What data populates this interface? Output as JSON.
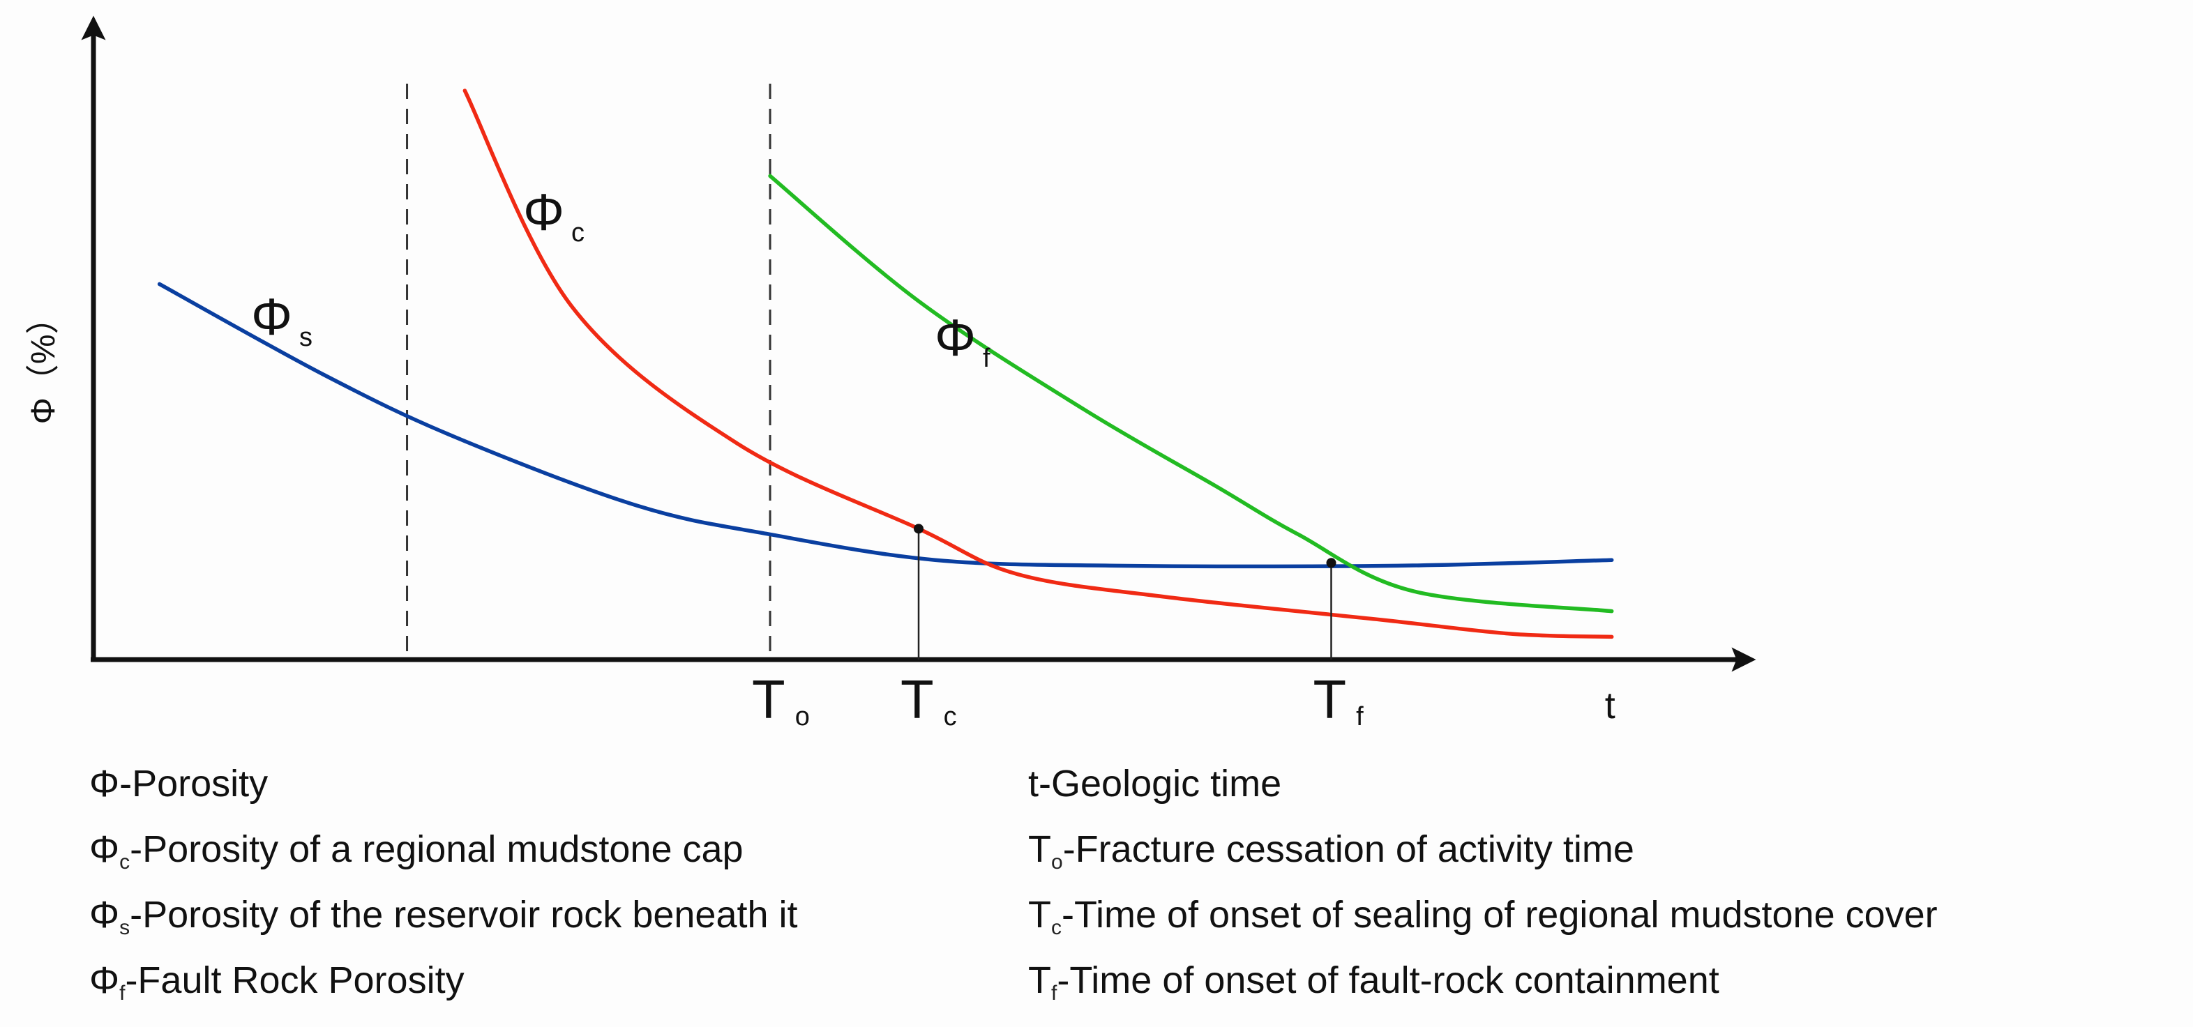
{
  "chart_data": {
    "type": "line",
    "title": "",
    "ylabel": "Φ（%）",
    "xlabel": "t",
    "x_range": [
      0,
      100
    ],
    "y_range": [
      0,
      100
    ],
    "series": [
      {
        "name": "Φs",
        "symbol": "Φ",
        "sub": "s",
        "color": "#0a3fa0",
        "points": [
          [
            4,
            66
          ],
          [
            14,
            50
          ],
          [
            22,
            39
          ],
          [
            33,
            27
          ],
          [
            41,
            22
          ],
          [
            51,
            17.5
          ],
          [
            62,
            16.5
          ],
          [
            79,
            16.5
          ],
          [
            92,
            17.5
          ]
        ]
      },
      {
        "name": "Φc",
        "symbol": "Φ",
        "sub": "c",
        "color": "#f02a14",
        "points": [
          [
            22.5,
            100
          ],
          [
            29,
            62
          ],
          [
            39,
            38
          ],
          [
            50,
            23
          ],
          [
            56,
            15
          ],
          [
            65,
            11
          ],
          [
            78,
            7
          ],
          [
            86,
            4.5
          ],
          [
            92,
            4
          ]
        ]
      },
      {
        "name": "Φf",
        "symbol": "Φ",
        "sub": "f",
        "color": "#22bb22",
        "points": [
          [
            41,
            85
          ],
          [
            50,
            63
          ],
          [
            60,
            44
          ],
          [
            68,
            30.5
          ],
          [
            73,
            22
          ],
          [
            80,
            12
          ],
          [
            92,
            8.5
          ]
        ]
      }
    ],
    "dashed_lines_x": [
      19,
      41
    ],
    "markers": [
      {
        "name": "Tc",
        "symbol": "T",
        "sub": "c",
        "x": 50,
        "y": 23
      },
      {
        "name": "Tf",
        "symbol": "T",
        "sub": "f",
        "x": 75,
        "y": 17
      }
    ],
    "x_tick_labels": [
      {
        "symbol": "T",
        "sub": "o",
        "x": 41
      },
      {
        "symbol": "T",
        "sub": "c",
        "x": 50
      },
      {
        "symbol": "T",
        "sub": "f",
        "x": 75
      },
      {
        "symbol": "t",
        "sub": "",
        "x": 92
      }
    ]
  },
  "legend": {
    "left": [
      {
        "sym": "Φ",
        "sub": "",
        "text": "-Porosity"
      },
      {
        "sym": "Φ",
        "sub": "c",
        "text": "-Porosity of a regional mudstone cap"
      },
      {
        "sym": "Φ",
        "sub": "s",
        "text": "-Porosity of the reservoir rock beneath it"
      },
      {
        "sym": "Φ",
        "sub": "f",
        "text": "-Fault Rock Porosity"
      }
    ],
    "right": [
      {
        "sym": "t",
        "sub": "",
        "text": "-Geologic time"
      },
      {
        "sym": "T",
        "sub": "o",
        "text": "-Fracture cessation of activity time"
      },
      {
        "sym": "T",
        "sub": "c",
        "text": "-Time of onset of sealing of regional mudstone cover"
      },
      {
        "sym": "T",
        "sub": "f",
        "text": "-Time of onset of fault-rock containment"
      }
    ]
  }
}
